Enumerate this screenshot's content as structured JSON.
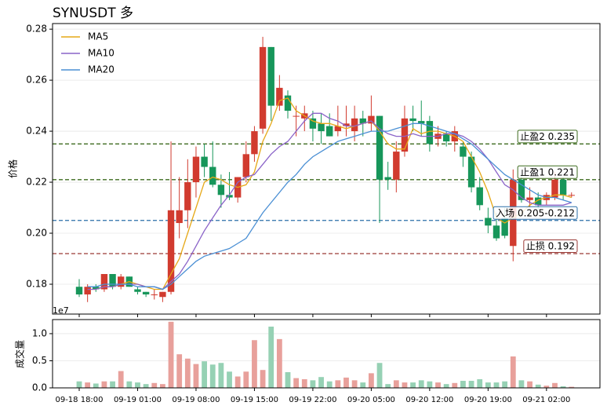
{
  "chart_data": [
    {
      "type": "candlestick",
      "title": "SYNUSDT  多",
      "ylabel": "价格",
      "offset_label": "1e7",
      "categories": [
        "09-18 18:00",
        null,
        null,
        null,
        null,
        null,
        null,
        "09-19 01:00",
        null,
        null,
        null,
        null,
        null,
        null,
        "09-19 08:00",
        null,
        null,
        null,
        null,
        null,
        null,
        "09-19 15:00",
        null,
        null,
        null,
        null,
        null,
        null,
        "09-19 22:00",
        null,
        null,
        null,
        null,
        null,
        null,
        "09-20 05:00",
        null,
        null,
        null,
        null,
        null,
        null,
        "09-20 12:00",
        null,
        null,
        null,
        null,
        null,
        null,
        "09-20 19:00",
        null,
        null,
        null,
        null,
        null,
        null,
        "09-21 02:00",
        null,
        null,
        null
      ],
      "open": [
        0.179,
        0.176,
        0.179,
        0.178,
        0.184,
        0.179,
        0.183,
        0.178,
        0.177,
        0.176,
        0.175,
        0.177,
        0.204,
        0.209,
        0.22,
        0.23,
        0.226,
        0.219,
        0.215,
        0.214,
        0.222,
        0.231,
        0.241,
        0.273,
        0.25,
        0.254,
        0.246,
        0.245,
        0.245,
        0.243,
        0.242,
        0.24,
        0.242,
        0.24,
        0.245,
        0.243,
        0.246,
        0.222,
        0.221,
        0.232,
        0.245,
        0.244,
        0.244,
        0.237,
        0.239,
        0.236,
        0.234,
        0.23,
        0.218,
        0.206,
        0.203,
        0.206,
        0.195,
        0.221,
        0.213,
        0.214,
        0.213,
        0.214,
        0.221,
        0.215
      ],
      "high": [
        0.182,
        0.18,
        0.18,
        0.184,
        0.184,
        0.184,
        0.183,
        0.179,
        0.177,
        0.178,
        0.177,
        0.236,
        0.222,
        0.229,
        0.234,
        0.235,
        0.236,
        0.223,
        0.224,
        0.222,
        0.236,
        0.242,
        0.277,
        0.273,
        0.262,
        0.256,
        0.25,
        0.25,
        0.248,
        0.247,
        0.247,
        0.25,
        0.25,
        0.25,
        0.248,
        0.254,
        0.246,
        0.228,
        0.236,
        0.25,
        0.25,
        0.252,
        0.246,
        0.242,
        0.24,
        0.242,
        0.236,
        0.232,
        0.222,
        0.21,
        0.208,
        0.21,
        0.225,
        0.223,
        0.218,
        0.216,
        0.216,
        0.224,
        0.222,
        0.216
      ],
      "low": [
        0.175,
        0.173,
        0.177,
        0.177,
        0.178,
        0.178,
        0.179,
        0.176,
        0.175,
        0.174,
        0.173,
        0.176,
        0.198,
        0.202,
        0.214,
        0.222,
        0.218,
        0.21,
        0.213,
        0.212,
        0.22,
        0.228,
        0.239,
        0.244,
        0.248,
        0.245,
        0.238,
        0.24,
        0.236,
        0.235,
        0.238,
        0.238,
        0.238,
        0.236,
        0.238,
        0.24,
        0.204,
        0.217,
        0.216,
        0.23,
        0.24,
        0.238,
        0.232,
        0.234,
        0.234,
        0.232,
        0.226,
        0.216,
        0.209,
        0.2,
        0.197,
        0.198,
        0.189,
        0.212,
        0.21,
        0.209,
        0.211,
        0.213,
        0.213,
        0.214
      ],
      "close": [
        0.176,
        0.179,
        0.178,
        0.184,
        0.179,
        0.183,
        0.179,
        0.177,
        0.176,
        0.176,
        0.177,
        0.209,
        0.209,
        0.22,
        0.23,
        0.226,
        0.219,
        0.215,
        0.214,
        0.222,
        0.231,
        0.24,
        0.273,
        0.25,
        0.257,
        0.248,
        0.246,
        0.247,
        0.241,
        0.24,
        0.238,
        0.242,
        0.243,
        0.245,
        0.243,
        0.246,
        0.221,
        0.221,
        0.232,
        0.245,
        0.244,
        0.243,
        0.235,
        0.239,
        0.236,
        0.24,
        0.23,
        0.218,
        0.211,
        0.203,
        0.198,
        0.199,
        0.221,
        0.213,
        0.214,
        0.211,
        0.215,
        0.221,
        0.215,
        0.215
      ],
      "up_color": "#d13b2f",
      "down_color": "#17965a",
      "series": [
        {
          "name": "MA5",
          "color": "#e6a817",
          "values": [
            null,
            0.178,
            0.178,
            0.179,
            0.179,
            0.18,
            0.181,
            0.18,
            0.179,
            0.178,
            0.178,
            0.184,
            0.19,
            0.2,
            0.21,
            0.22,
            0.222,
            0.221,
            0.219,
            0.218,
            0.219,
            0.224,
            0.236,
            0.243,
            0.252,
            0.253,
            0.248,
            0.246,
            0.244,
            0.243,
            0.243,
            0.242,
            0.241,
            0.242,
            0.243,
            0.244,
            0.24,
            0.235,
            0.233,
            0.233,
            0.241,
            0.239,
            0.24,
            0.24,
            0.239,
            0.238,
            0.236,
            0.23,
            0.224,
            0.216,
            0.206,
            0.204,
            0.206,
            0.208,
            0.211,
            0.213,
            0.214,
            0.215,
            0.215,
            0.214
          ]
        },
        {
          "name": "MA10",
          "color": "#8a63c8",
          "values": [
            null,
            0.178,
            0.178,
            0.179,
            0.179,
            0.18,
            0.18,
            0.18,
            0.179,
            0.179,
            0.178,
            0.181,
            0.184,
            0.189,
            0.195,
            0.201,
            0.206,
            0.211,
            0.215,
            0.22,
            0.222,
            0.223,
            0.227,
            0.231,
            0.234,
            0.236,
            0.24,
            0.244,
            0.247,
            0.247,
            0.245,
            0.244,
            0.242,
            0.242,
            0.243,
            0.244,
            0.241,
            0.239,
            0.238,
            0.238,
            0.239,
            0.238,
            0.238,
            0.238,
            0.239,
            0.239,
            0.238,
            0.236,
            0.233,
            0.229,
            0.224,
            0.219,
            0.217,
            0.214,
            0.212,
            0.211,
            0.211,
            0.211,
            0.211,
            0.212
          ]
        },
        {
          "name": "MA20",
          "color": "#4a8fd4",
          "values": [
            null,
            0.179,
            0.179,
            0.18,
            0.18,
            0.18,
            0.18,
            0.179,
            0.179,
            0.179,
            0.178,
            0.18,
            0.183,
            0.186,
            0.189,
            0.191,
            0.192,
            0.193,
            0.194,
            0.196,
            0.198,
            0.203,
            0.208,
            0.212,
            0.216,
            0.22,
            0.223,
            0.227,
            0.23,
            0.232,
            0.234,
            0.236,
            0.237,
            0.238,
            0.239,
            0.24,
            0.24,
            0.24,
            0.241,
            0.242,
            0.243,
            0.243,
            0.242,
            0.241,
            0.24,
            0.239,
            0.237,
            0.235,
            0.232,
            0.229,
            0.226,
            0.223,
            0.221,
            0.219,
            0.217,
            0.215,
            0.214,
            0.214,
            0.213,
            0.212
          ]
        }
      ],
      "levels": [
        {
          "value": 0.235,
          "label": "止盈2 0.235",
          "color": "#3d6b1f"
        },
        {
          "value": 0.221,
          "label": "止盈1 0.221",
          "color": "#3d6b1f"
        },
        {
          "value": 0.205,
          "label": "入场 0.205-0.212",
          "color": "#2a6fa8"
        },
        {
          "value": 0.192,
          "label": "止损 0.192",
          "color": "#9a3a36"
        }
      ],
      "ylim": [
        0.1683,
        0.2822
      ],
      "yticks": [
        0.18,
        {
          "value": 0.2,
          "label": "0.20"
        },
        0.22,
        0.24,
        0.26,
        0.28
      ],
      "grid": true,
      "legend": "upper left"
    },
    {
      "type": "bar",
      "ylabel": "成交量",
      "values": [
        0.12,
        0.1,
        0.08,
        0.12,
        0.12,
        0.31,
        0.12,
        0.1,
        0.07,
        0.09,
        0.07,
        1.22,
        0.62,
        0.54,
        0.44,
        0.49,
        0.43,
        0.46,
        0.3,
        0.21,
        0.3,
        0.88,
        0.33,
        1.13,
        0.9,
        0.29,
        0.18,
        0.16,
        0.14,
        0.2,
        0.12,
        0.14,
        0.19,
        0.14,
        0.1,
        0.27,
        0.46,
        0.07,
        0.14,
        0.1,
        0.1,
        0.14,
        0.12,
        0.1,
        0.07,
        0.09,
        0.13,
        0.13,
        0.16,
        0.1,
        0.1,
        0.12,
        0.58,
        0.14,
        0.12,
        0.06,
        0.04,
        0.09,
        0.03,
        0.02
      ],
      "up_color": "#e8a09b",
      "down_color": "#96d1b4",
      "ylim": [
        0,
        1.26
      ],
      "yticks": [
        {
          "value": 0,
          "label": "0.0"
        },
        0.5,
        {
          "value": 1,
          "label": "1.0"
        }
      ],
      "grid": true
    }
  ]
}
